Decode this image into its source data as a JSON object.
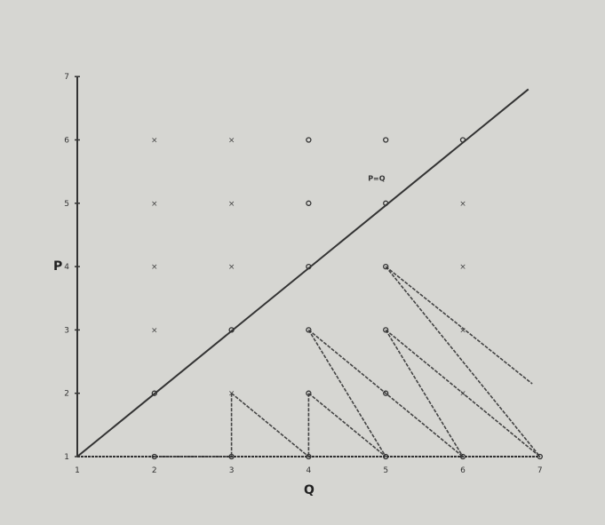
{
  "chart_data": {
    "type": "scatter",
    "xlabel": "Q",
    "ylabel": "P",
    "xlim": [
      1,
      7
    ],
    "ylim": [
      1,
      7
    ],
    "xticks": [
      "1",
      "2",
      "3",
      "4",
      "5",
      "6",
      "7"
    ],
    "yticks": [
      "1",
      "2",
      "3",
      "4",
      "5",
      "6",
      "7"
    ],
    "grid": false,
    "annotation": {
      "text": "P=Q",
      "x": 5,
      "y": 5.4
    },
    "diagonal": {
      "from": [
        1,
        1
      ],
      "to": [
        6.85,
        6.8
      ]
    },
    "points_o": [
      [
        4,
        6
      ],
      [
        5,
        6
      ],
      [
        6,
        6
      ],
      [
        4,
        5
      ],
      [
        5,
        5
      ],
      [
        4,
        4
      ],
      [
        5,
        4
      ],
      [
        3,
        3
      ],
      [
        4,
        3
      ],
      [
        5,
        3
      ],
      [
        2,
        2
      ],
      [
        4,
        2
      ],
      [
        5,
        2
      ],
      [
        2,
        1
      ],
      [
        3,
        1
      ],
      [
        4,
        1
      ],
      [
        5,
        1
      ],
      [
        6,
        1
      ],
      [
        7,
        1
      ]
    ],
    "points_x": [
      [
        2,
        6
      ],
      [
        3,
        6
      ],
      [
        2,
        5
      ],
      [
        3,
        5
      ],
      [
        6,
        5
      ],
      [
        2,
        4
      ],
      [
        3,
        4
      ],
      [
        6,
        4
      ],
      [
        2,
        3
      ],
      [
        6,
        3
      ],
      [
        3,
        2
      ],
      [
        6,
        2
      ]
    ],
    "segments": [
      [
        [
          3,
          2
        ],
        [
          3,
          1
        ]
      ],
      [
        [
          3,
          2
        ],
        [
          4,
          1
        ]
      ],
      [
        [
          4,
          2
        ],
        [
          4,
          1
        ]
      ],
      [
        [
          4,
          2
        ],
        [
          5,
          1
        ]
      ],
      [
        [
          4,
          3
        ],
        [
          5,
          1
        ]
      ],
      [
        [
          4,
          3
        ],
        [
          6,
          1
        ]
      ],
      [
        [
          5,
          3
        ],
        [
          6,
          1
        ]
      ],
      [
        [
          5,
          3
        ],
        [
          7,
          1
        ]
      ],
      [
        [
          5,
          4
        ],
        [
          7,
          1
        ]
      ],
      [
        [
          5,
          4
        ],
        [
          6.9,
          2.15
        ]
      ],
      [
        [
          2,
          1
        ],
        [
          3,
          1
        ]
      ]
    ]
  }
}
